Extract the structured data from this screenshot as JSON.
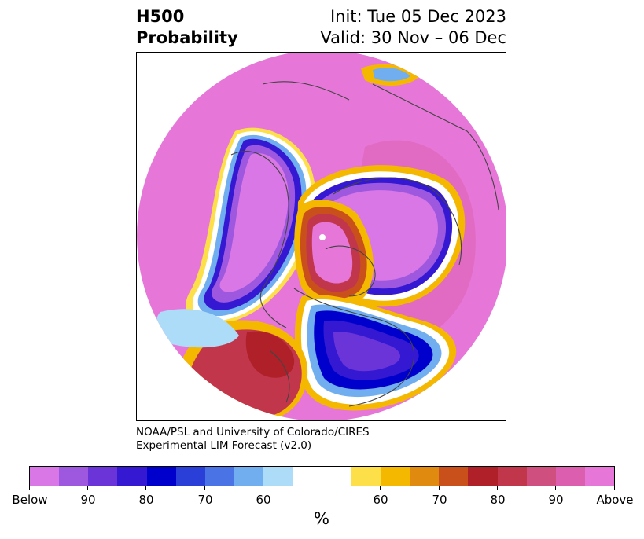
{
  "title": {
    "line1_left": "H500",
    "line2_left": "Probability",
    "line1_right": "Init: Tue 05 Dec 2023",
    "line2_right": "Valid: 30 Nov – 06 Dec"
  },
  "credit": {
    "line1": "NOAA/PSL and University of Colorado/CIRES",
    "line2": "Experimental LIM Forecast (v2.0)"
  },
  "colorbar": {
    "colors": [
      "#d977e6",
      "#9e58e0",
      "#6a34d8",
      "#3418d2",
      "#0000cc",
      "#2a3ed8",
      "#4a74e6",
      "#70aef0",
      "#addcf8",
      "#ffffff",
      "#ffffff",
      "#fde049",
      "#f5b800",
      "#e08b10",
      "#c9501b",
      "#b02028",
      "#c2364c",
      "#cf4f7e",
      "#db5fae",
      "#e677d8"
    ],
    "tick_labels": [
      "Below",
      "90",
      "80",
      "70",
      "60",
      "60",
      "70",
      "80",
      "90",
      "Above"
    ],
    "units": "%"
  },
  "map": {
    "description_icon": "polar-stereographic-map"
  }
}
